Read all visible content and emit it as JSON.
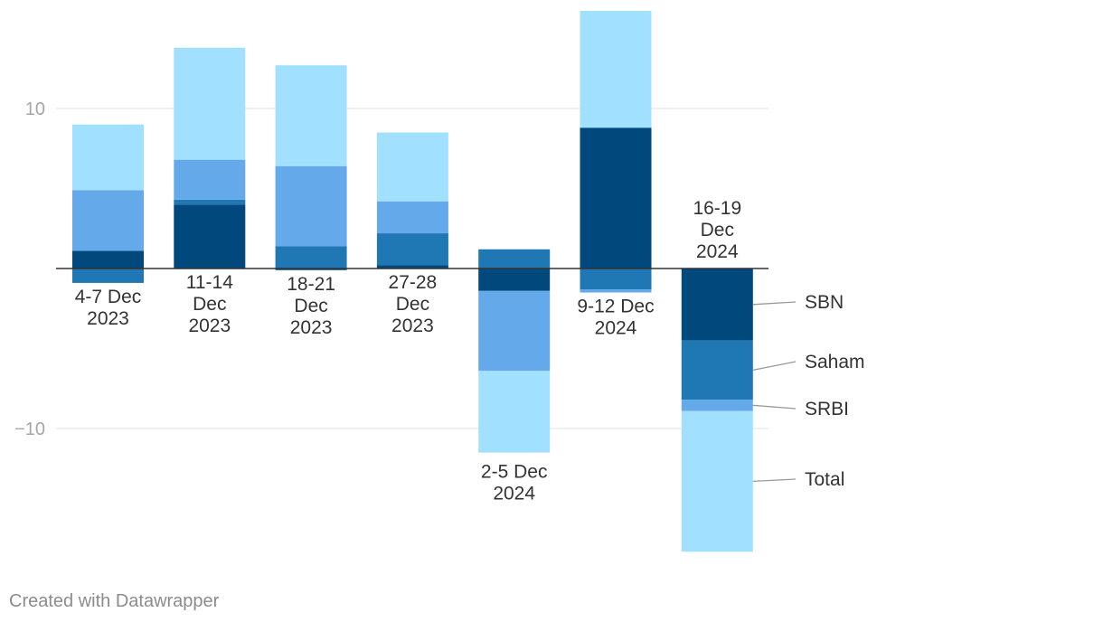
{
  "chart_data": {
    "type": "bar",
    "stacked": true,
    "categories": [
      [
        "4-7 Dec",
        "2023"
      ],
      [
        "11-14",
        "Dec",
        "2023"
      ],
      [
        "18-21",
        "Dec",
        "2023"
      ],
      [
        "27-28",
        "Dec",
        "2023"
      ],
      [
        "2-5 Dec",
        "2024"
      ],
      [
        "9-12 Dec",
        "2024"
      ],
      [
        "16-19",
        "Dec",
        "2024"
      ]
    ],
    "series": [
      {
        "name": "SBN",
        "color": "#01497c",
        "values": [
          1.1,
          4.0,
          -0.1,
          0.2,
          -1.4,
          8.8,
          -4.5
        ]
      },
      {
        "name": "Saham",
        "color": "#1f78b4",
        "values": [
          -0.9,
          0.3,
          1.4,
          2.0,
          1.2,
          -1.3,
          -3.7
        ]
      },
      {
        "name": "SRBI",
        "color": "#64aaeb",
        "values": [
          3.8,
          2.5,
          5.0,
          2.0,
          -5.0,
          -0.2,
          -0.7
        ]
      },
      {
        "name": "Total",
        "color": "#a1e1ff",
        "values": [
          4.1,
          7.0,
          6.3,
          4.3,
          -5.1,
          7.3,
          -8.8
        ]
      }
    ],
    "yticks": [
      10,
      -10
    ],
    "ytick_labels": [
      "10",
      "−10"
    ],
    "ylim": [
      -18,
      16.5
    ],
    "grid": true,
    "legend": "direct labels right of last bar"
  },
  "footer": {
    "credit": "Created with Datawrapper"
  },
  "colors": {
    "grid": "#e2e2e2",
    "axis": "#333333",
    "tick_text": "#a6a6a6",
    "label_text": "#333333",
    "leader_line": "#999999",
    "credit_text": "#8c8c8c"
  }
}
